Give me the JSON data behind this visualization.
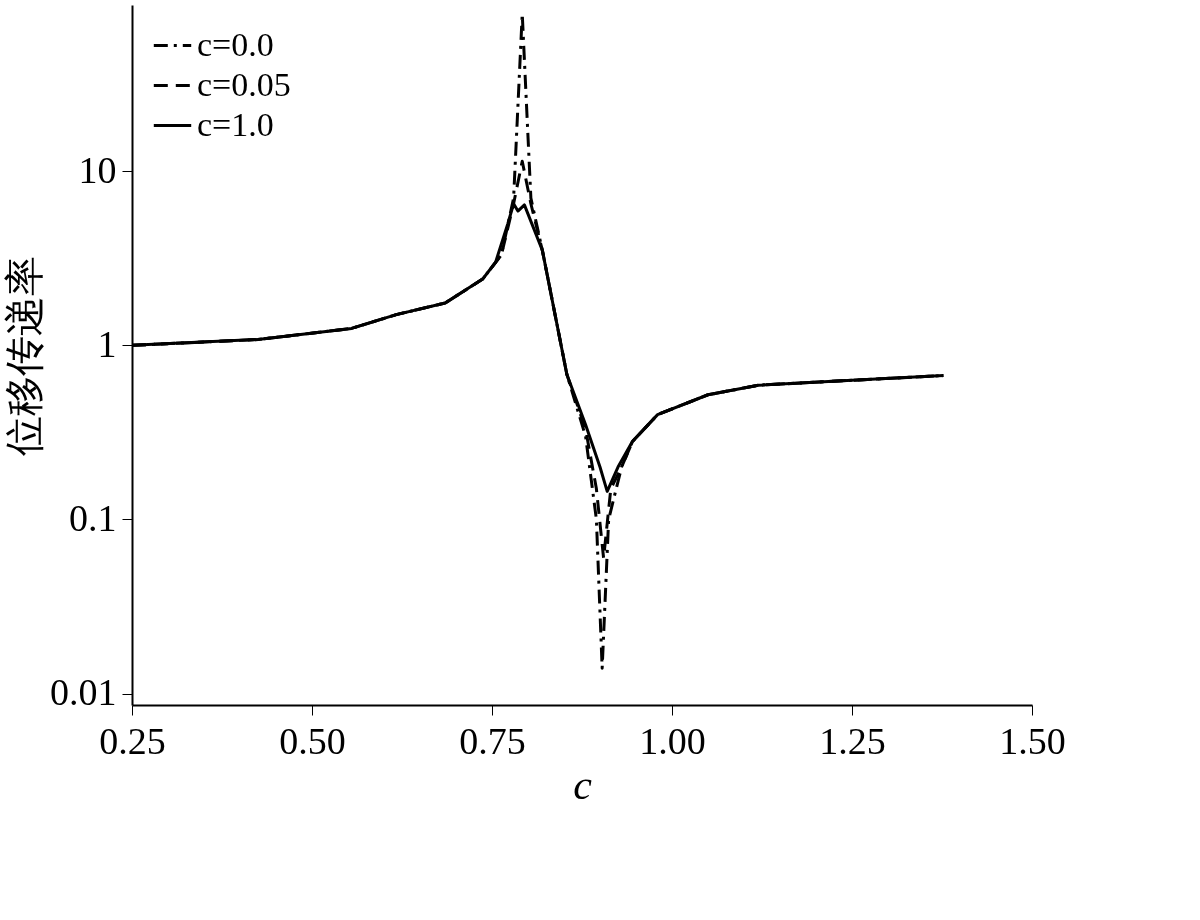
{
  "chart_data": {
    "type": "line",
    "xlabel": "c",
    "ylabel": "位移传递率",
    "log": "y",
    "grid": false,
    "legend": "top left",
    "xlim": [
      0.25,
      1.5
    ],
    "ylim": [
      0.0086,
      90
    ],
    "xticks": [
      0.25,
      {
        "value": 0.5,
        "label": "0.50"
      },
      0.75,
      {
        "value": 1.0,
        "label": "1.00"
      },
      1.25,
      {
        "value": 1.5,
        "label": "1.50"
      }
    ],
    "yticks": [
      0.01,
      0.1,
      1,
      10
    ],
    "series": [
      {
        "name": "c=0.0",
        "color": "#000000",
        "line_style": "dashdot",
        "x": [
          0.25,
          0.425,
          0.555,
          0.617,
          0.685,
          0.737,
          0.763,
          0.78,
          0.792,
          0.804,
          0.82,
          0.854,
          0.88,
          0.895,
          0.903,
          0.912,
          0.93,
          0.945,
          0.98,
          1.05,
          1.12,
          1.25,
          1.377
        ],
        "values": [
          1.0,
          1.08,
          1.25,
          1.5,
          1.75,
          2.4,
          3.3,
          7,
          80,
          7,
          3.5,
          0.68,
          0.3,
          0.1,
          0.014,
          0.1,
          0.2,
          0.28,
          0.4,
          0.52,
          0.59,
          0.63,
          0.67
        ]
      },
      {
        "name": "c=0.05",
        "color": "#000000",
        "line_style": "dashed",
        "x": [
          0.25,
          0.425,
          0.555,
          0.617,
          0.685,
          0.737,
          0.763,
          0.78,
          0.792,
          0.804,
          0.82,
          0.854,
          0.88,
          0.895,
          0.905,
          0.915,
          0.93,
          0.945,
          0.98,
          1.05,
          1.12,
          1.25,
          1.377
        ],
        "values": [
          1.0,
          1.08,
          1.25,
          1.5,
          1.75,
          2.4,
          3.3,
          6.5,
          11.4,
          6.5,
          3.5,
          0.68,
          0.33,
          0.15,
          0.06,
          0.15,
          0.2,
          0.28,
          0.4,
          0.52,
          0.59,
          0.63,
          0.67
        ]
      },
      {
        "name": "c=1.0",
        "color": "#000000",
        "line_style": "solid",
        "x": [
          0.25,
          0.425,
          0.555,
          0.617,
          0.685,
          0.737,
          0.755,
          0.772,
          0.78,
          0.786,
          0.795,
          0.82,
          0.854,
          0.88,
          0.9,
          0.91,
          0.925,
          0.945,
          0.98,
          1.05,
          1.12,
          1.25,
          1.377
        ],
        "values": [
          1.0,
          1.08,
          1.25,
          1.5,
          1.75,
          2.4,
          3.0,
          5.0,
          6.5,
          5.9,
          6.4,
          3.5,
          0.68,
          0.35,
          0.2,
          0.145,
          0.2,
          0.28,
          0.4,
          0.52,
          0.59,
          0.63,
          0.67
        ]
      }
    ]
  }
}
